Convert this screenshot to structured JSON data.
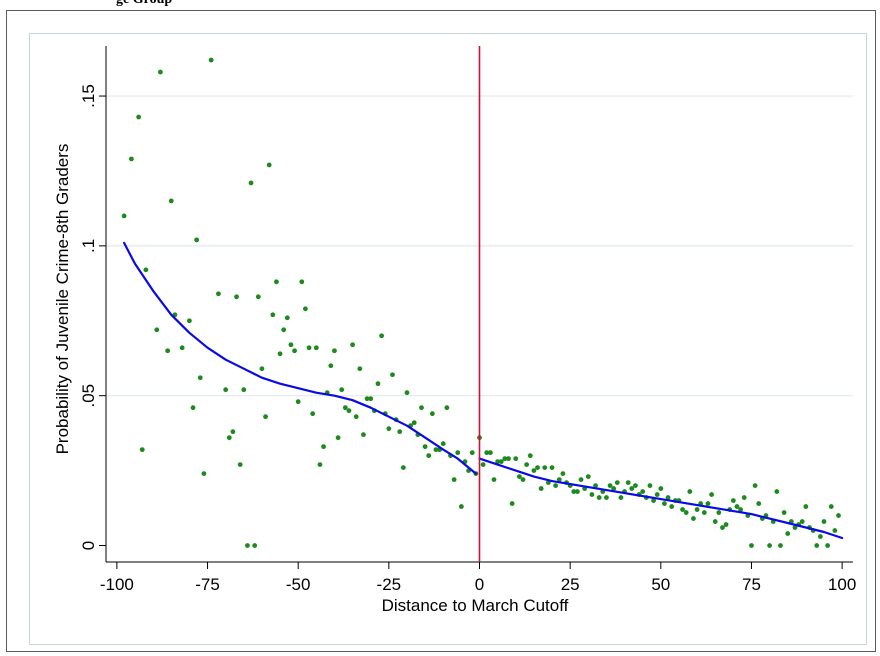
{
  "top_title": "ge Group",
  "chart_data": {
    "type": "scatter",
    "xlabel": "Distance to March Cutoff",
    "ylabel": "Probability of Juvenile Crime-8th Graders",
    "xlim": [
      -103,
      103
    ],
    "ylim": [
      -0.0055,
      0.1667
    ],
    "xticks": [
      -100,
      -75,
      -50,
      -25,
      0,
      25,
      50,
      75,
      100
    ],
    "xtick_labels": [
      "-100",
      "-75",
      "-50",
      "-25",
      "0",
      "25",
      "50",
      "75",
      "100"
    ],
    "yticks": [
      0,
      0.05,
      0.1,
      0.15
    ],
    "ytick_labels": [
      "0",
      ".05",
      ".1",
      ".15"
    ],
    "grid": "horizontal",
    "legend": "none",
    "cutoff_x": 0,
    "colors": {
      "points": "#1e8a1e",
      "fit": "#0a0ae6",
      "cutoff": "#cc1133",
      "grid": "#dfe9ee"
    },
    "scatter": [
      [
        -98,
        0.11
      ],
      [
        -96,
        0.129
      ],
      [
        -94,
        0.143
      ],
      [
        -93,
        0.032
      ],
      [
        -92,
        0.092
      ],
      [
        -89,
        0.072
      ],
      [
        -88,
        0.158
      ],
      [
        -86,
        0.065
      ],
      [
        -85,
        0.115
      ],
      [
        -84,
        0.077
      ],
      [
        -82,
        0.066
      ],
      [
        -80,
        0.075
      ],
      [
        -79,
        0.046
      ],
      [
        -78,
        0.102
      ],
      [
        -77,
        0.056
      ],
      [
        -76,
        0.024
      ],
      [
        -74,
        0.162
      ],
      [
        -72,
        0.084
      ],
      [
        -70,
        0.052
      ],
      [
        -69,
        0.036
      ],
      [
        -68,
        0.038
      ],
      [
        -67,
        0.083
      ],
      [
        -66,
        0.027
      ],
      [
        -65,
        0.052
      ],
      [
        -64,
        0.0
      ],
      [
        -63,
        0.121
      ],
      [
        -62,
        0.0
      ],
      [
        -61,
        0.083
      ],
      [
        -60,
        0.059
      ],
      [
        -59,
        0.043
      ],
      [
        -58,
        0.127
      ],
      [
        -57,
        0.077
      ],
      [
        -56,
        0.088
      ],
      [
        -55,
        0.064
      ],
      [
        -54,
        0.072
      ],
      [
        -53,
        0.076
      ],
      [
        -52,
        0.067
      ],
      [
        -51,
        0.065
      ],
      [
        -50,
        0.048
      ],
      [
        -49,
        0.088
      ],
      [
        -48,
        0.079
      ],
      [
        -47,
        0.066
      ],
      [
        -46,
        0.044
      ],
      [
        -45,
        0.066
      ],
      [
        -44,
        0.027
      ],
      [
        -43,
        0.033
      ],
      [
        -42,
        0.051
      ],
      [
        -41,
        0.06
      ],
      [
        -40,
        0.065
      ],
      [
        -39,
        0.036
      ],
      [
        -38,
        0.052
      ],
      [
        -37,
        0.046
      ],
      [
        -36,
        0.045
      ],
      [
        -35,
        0.067
      ],
      [
        -34,
        0.043
      ],
      [
        -33,
        0.059
      ],
      [
        -32,
        0.037
      ],
      [
        -31,
        0.049
      ],
      [
        -30,
        0.049
      ],
      [
        -29,
        0.045
      ],
      [
        -28,
        0.054
      ],
      [
        -27,
        0.07
      ],
      [
        -26,
        0.044
      ],
      [
        -25,
        0.039
      ],
      [
        -24,
        0.057
      ],
      [
        -23,
        0.042
      ],
      [
        -22,
        0.038
      ],
      [
        -21,
        0.026
      ],
      [
        -20,
        0.051
      ],
      [
        -19,
        0.04
      ],
      [
        -18,
        0.041
      ],
      [
        -17,
        0.037
      ],
      [
        -16,
        0.046
      ],
      [
        -15,
        0.033
      ],
      [
        -14,
        0.03
      ],
      [
        -13,
        0.044
      ],
      [
        -12,
        0.032
      ],
      [
        -11,
        0.032
      ],
      [
        -10,
        0.034
      ],
      [
        -9,
        0.046
      ],
      [
        -8,
        0.03
      ],
      [
        -7,
        0.022
      ],
      [
        -6,
        0.031
      ],
      [
        -5,
        0.013
      ],
      [
        -4,
        0.028
      ],
      [
        -3,
        0.025
      ],
      [
        -2,
        0.031
      ],
      [
        -1,
        0.024
      ],
      [
        0,
        0.036
      ],
      [
        1,
        0.027
      ],
      [
        2,
        0.031
      ],
      [
        3,
        0.031
      ],
      [
        4,
        0.022
      ],
      [
        5,
        0.028
      ],
      [
        6,
        0.028
      ],
      [
        7,
        0.029
      ],
      [
        8,
        0.029
      ],
      [
        9,
        0.014
      ],
      [
        10,
        0.029
      ],
      [
        11,
        0.023
      ],
      [
        12,
        0.022
      ],
      [
        13,
        0.027
      ],
      [
        14,
        0.03
      ],
      [
        15,
        0.025
      ],
      [
        16,
        0.026
      ],
      [
        17,
        0.019
      ],
      [
        18,
        0.026
      ],
      [
        19,
        0.021
      ],
      [
        20,
        0.026
      ],
      [
        21,
        0.02
      ],
      [
        22,
        0.022
      ],
      [
        23,
        0.024
      ],
      [
        24,
        0.021
      ],
      [
        25,
        0.02
      ],
      [
        26,
        0.018
      ],
      [
        27,
        0.018
      ],
      [
        28,
        0.022
      ],
      [
        29,
        0.019
      ],
      [
        30,
        0.023
      ],
      [
        31,
        0.017
      ],
      [
        32,
        0.02
      ],
      [
        33,
        0.016
      ],
      [
        34,
        0.018
      ],
      [
        35,
        0.016
      ],
      [
        36,
        0.02
      ],
      [
        37,
        0.019
      ],
      [
        38,
        0.021
      ],
      [
        39,
        0.016
      ],
      [
        40,
        0.018
      ],
      [
        41,
        0.021
      ],
      [
        42,
        0.019
      ],
      [
        43,
        0.02
      ],
      [
        44,
        0.017
      ],
      [
        45,
        0.018
      ],
      [
        46,
        0.016
      ],
      [
        47,
        0.02
      ],
      [
        48,
        0.015
      ],
      [
        49,
        0.017
      ],
      [
        50,
        0.019
      ],
      [
        51,
        0.014
      ],
      [
        52,
        0.016
      ],
      [
        53,
        0.013
      ],
      [
        54,
        0.015
      ],
      [
        55,
        0.015
      ],
      [
        56,
        0.012
      ],
      [
        57,
        0.011
      ],
      [
        58,
        0.018
      ],
      [
        59,
        0.009
      ],
      [
        60,
        0.012
      ],
      [
        61,
        0.014
      ],
      [
        62,
        0.011
      ],
      [
        63,
        0.014
      ],
      [
        64,
        0.017
      ],
      [
        65,
        0.008
      ],
      [
        66,
        0.011
      ],
      [
        67,
        0.006
      ],
      [
        68,
        0.007
      ],
      [
        69,
        0.012
      ],
      [
        70,
        0.015
      ],
      [
        71,
        0.013
      ],
      [
        72,
        0.012
      ],
      [
        73,
        0.016
      ],
      [
        74,
        0.01
      ],
      [
        75,
        0.0
      ],
      [
        76,
        0.02
      ],
      [
        77,
        0.014
      ],
      [
        78,
        0.009
      ],
      [
        79,
        0.01
      ],
      [
        80,
        0.0
      ],
      [
        81,
        0.008
      ],
      [
        82,
        0.018
      ],
      [
        83,
        0.0
      ],
      [
        84,
        0.011
      ],
      [
        85,
        0.004
      ],
      [
        86,
        0.008
      ],
      [
        87,
        0.006
      ],
      [
        88,
        0.007
      ],
      [
        89,
        0.008
      ],
      [
        90,
        0.013
      ],
      [
        91,
        0.006
      ],
      [
        92,
        0.005
      ],
      [
        93,
        0.0
      ],
      [
        94,
        0.003
      ],
      [
        95,
        0.008
      ],
      [
        96,
        0.0
      ],
      [
        97,
        0.013
      ],
      [
        98,
        0.005
      ],
      [
        99,
        0.01
      ]
    ],
    "fit_left": [
      [
        -98,
        0.101
      ],
      [
        -95,
        0.094
      ],
      [
        -90,
        0.085
      ],
      [
        -85,
        0.077
      ],
      [
        -80,
        0.071
      ],
      [
        -75,
        0.066
      ],
      [
        -70,
        0.062
      ],
      [
        -65,
        0.059
      ],
      [
        -60,
        0.056
      ],
      [
        -55,
        0.054
      ],
      [
        -50,
        0.0525
      ],
      [
        -45,
        0.051
      ],
      [
        -40,
        0.05
      ],
      [
        -35,
        0.0485
      ],
      [
        -30,
        0.046
      ],
      [
        -25,
        0.043
      ],
      [
        -20,
        0.04
      ],
      [
        -15,
        0.036
      ],
      [
        -10,
        0.032
      ],
      [
        -6,
        0.029
      ],
      [
        -3,
        0.026
      ],
      [
        -1,
        0.024
      ]
    ],
    "fit_right": [
      [
        0,
        0.029
      ],
      [
        5,
        0.027
      ],
      [
        10,
        0.025
      ],
      [
        15,
        0.023
      ],
      [
        20,
        0.0215
      ],
      [
        25,
        0.0205
      ],
      [
        30,
        0.0195
      ],
      [
        35,
        0.0185
      ],
      [
        40,
        0.0175
      ],
      [
        45,
        0.0165
      ],
      [
        50,
        0.0155
      ],
      [
        55,
        0.0145
      ],
      [
        60,
        0.0135
      ],
      [
        65,
        0.0125
      ],
      [
        70,
        0.0115
      ],
      [
        75,
        0.0105
      ],
      [
        80,
        0.009
      ],
      [
        85,
        0.0075
      ],
      [
        90,
        0.006
      ],
      [
        95,
        0.0045
      ],
      [
        100,
        0.0025
      ]
    ]
  }
}
